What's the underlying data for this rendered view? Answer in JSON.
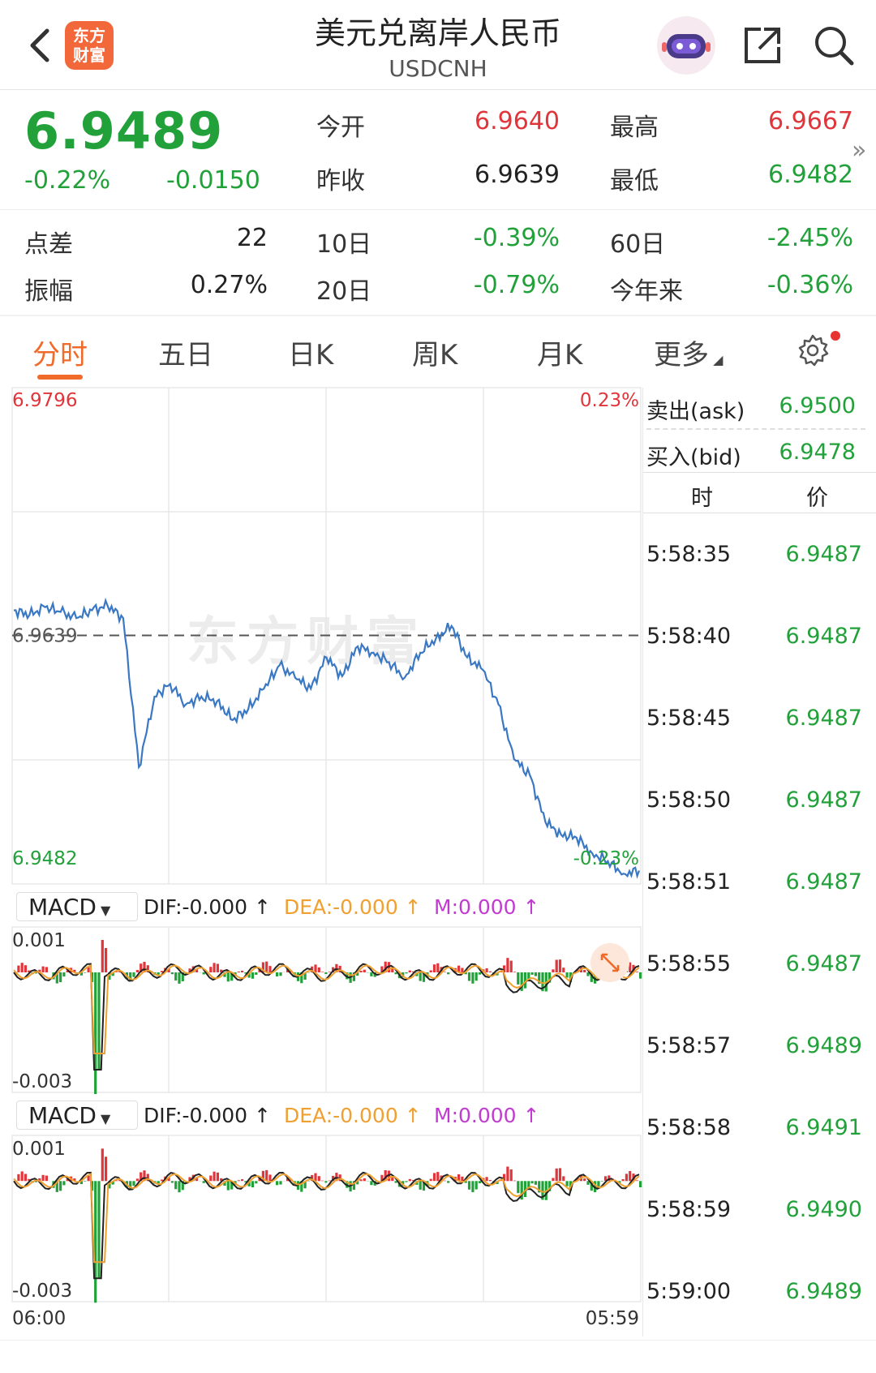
{
  "header": {
    "title": "美元兑离岸人民币",
    "subtitle": "USDCNH",
    "logo_line1": "东方",
    "logo_line2": "财富"
  },
  "quote": {
    "price": "6.9489",
    "change_pct": "-0.22%",
    "change": "-0.0150",
    "open_label": "今开",
    "open": "6.9640",
    "high_label": "最高",
    "high": "6.9667",
    "prev_close_label": "昨收",
    "prev_close": "6.9639",
    "low_label": "最低",
    "low": "6.9482",
    "spread_label": "点差",
    "spread": "22",
    "d10_label": "10日",
    "d10": "-0.39%",
    "d60_label": "60日",
    "d60": "-2.45%",
    "amplitude_label": "振幅",
    "amplitude": "0.27%",
    "d20_label": "20日",
    "d20": "-0.79%",
    "ytd_label": "今年来",
    "ytd": "-0.36%"
  },
  "tabs": [
    "分时",
    "五日",
    "日K",
    "周K",
    "月K",
    "更多"
  ],
  "active_tab": 0,
  "chart": {
    "y_max": "6.9796",
    "y_min": "6.9482",
    "pct_max": "0.23%",
    "pct_min": "-0.23%",
    "prev_close": "6.9639",
    "x_start": "06:00",
    "x_end": "05:59",
    "watermark": "东方财富",
    "line_color": "#3a78c3"
  },
  "macd": [
    {
      "label": "MACD",
      "dif": "DIF:-0.000 ↑",
      "dea": "DEA:-0.000 ↑",
      "m": "M:0.000 ↑",
      "top": "0.001",
      "bottom": "-0.003"
    },
    {
      "label": "MACD",
      "dif": "DIF:-0.000 ↑",
      "dea": "DEA:-0.000 ↑",
      "m": "M:0.000 ↑",
      "top": "0.001",
      "bottom": "-0.003"
    }
  ],
  "order_book": {
    "ask_label": "卖出(ask)",
    "ask": "6.9500",
    "bid_label": "买入(bid)",
    "bid": "6.9478",
    "time_header": "时",
    "price_header": "价"
  },
  "ticks": [
    {
      "time": "5:58:35",
      "price": "6.9487"
    },
    {
      "time": "5:58:40",
      "price": "6.9487"
    },
    {
      "time": "5:58:45",
      "price": "6.9487"
    },
    {
      "time": "5:58:50",
      "price": "6.9487"
    },
    {
      "time": "5:58:51",
      "price": "6.9487"
    },
    {
      "time": "5:58:55",
      "price": "6.9487"
    },
    {
      "time": "5:58:57",
      "price": "6.9489"
    },
    {
      "time": "5:58:58",
      "price": "6.9491"
    },
    {
      "time": "5:58:59",
      "price": "6.9490"
    },
    {
      "time": "5:59:00",
      "price": "6.9489"
    }
  ],
  "chart_data": {
    "type": "line",
    "title": "",
    "xlabel": "",
    "ylabel": "",
    "ylim": [
      6.9482,
      6.9796
    ],
    "x_ticks": [
      "06:00",
      "05:59"
    ],
    "reference_line": 6.9639,
    "series": [
      {
        "values": [
          6.9655,
          6.9652,
          6.9657,
          6.9654,
          6.965,
          6.9655,
          6.9658,
          6.965,
          6.9555,
          6.96,
          6.9608,
          6.9595,
          6.96,
          6.9597,
          6.9585,
          6.9592,
          6.9605,
          6.962,
          6.9612,
          6.9605,
          6.9625,
          6.9613,
          6.9632,
          6.9628,
          6.9622,
          6.9612,
          6.9628,
          6.9637,
          6.9645,
          6.9625,
          6.9617,
          6.9595,
          6.956,
          6.955,
          6.952,
          6.9512,
          6.951,
          6.95,
          6.9495,
          6.9487,
          6.9489
        ]
      }
    ]
  }
}
